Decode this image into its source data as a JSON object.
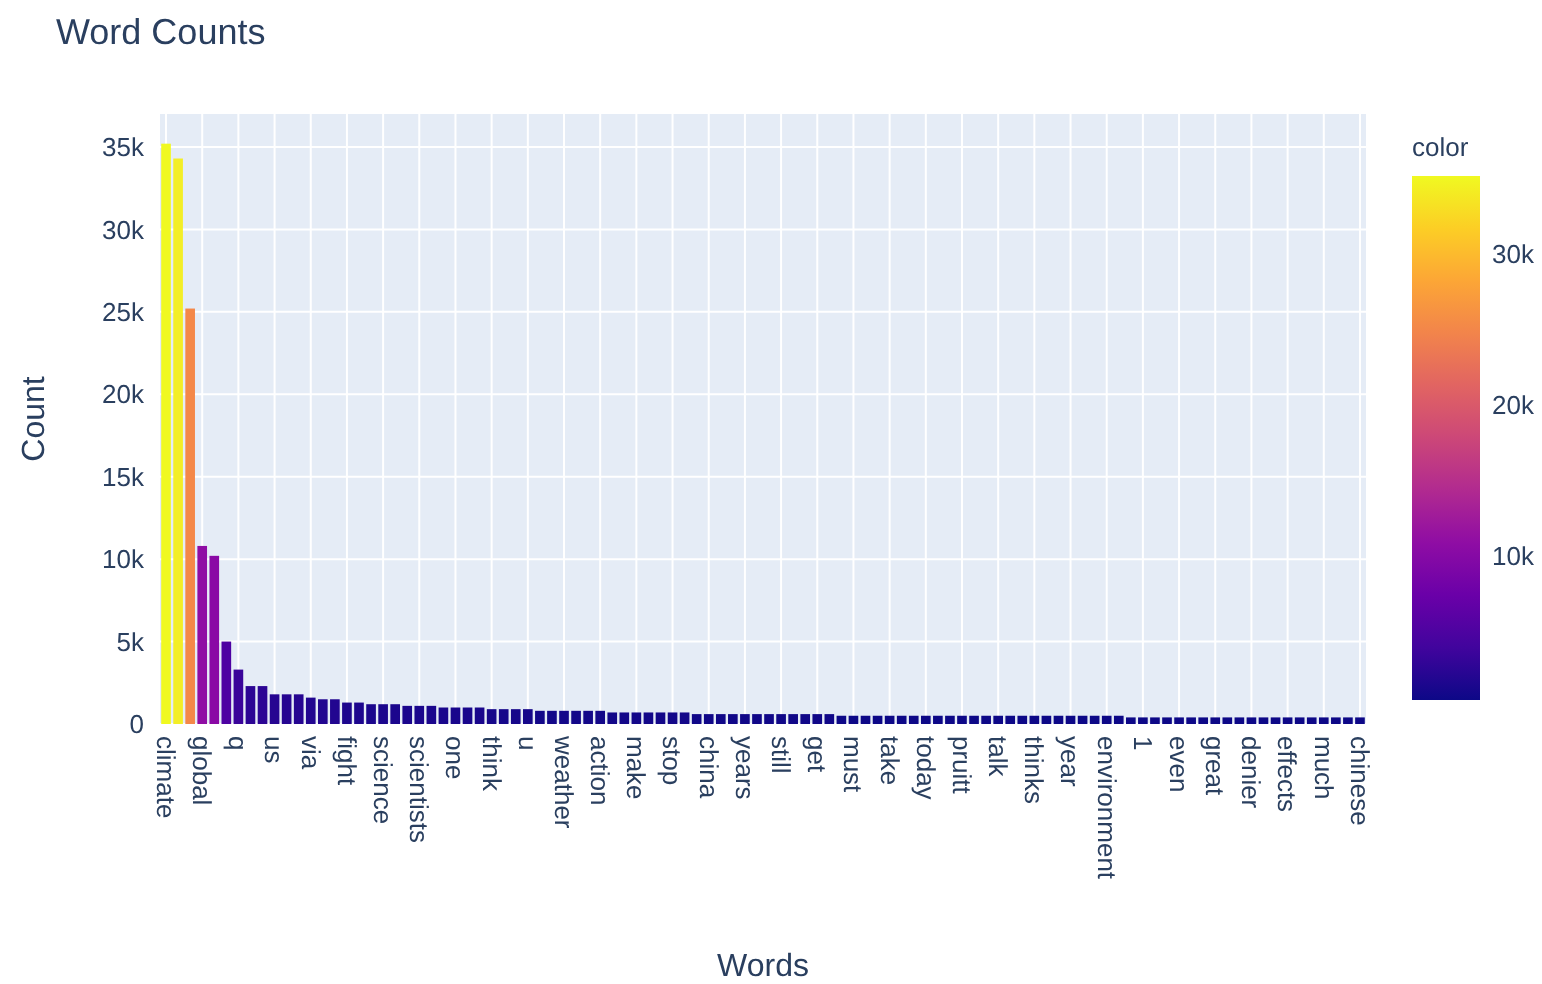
{
  "chart_data": {
    "type": "bar",
    "title": "Word Counts",
    "xlabel": "Words",
    "ylabel": "Count",
    "clabel": "color",
    "categories": [
      "climate",
      null,
      null,
      "global",
      null,
      null,
      "q",
      null,
      null,
      "us",
      null,
      null,
      "via",
      null,
      null,
      "fight",
      null,
      null,
      "science",
      null,
      null,
      "scientists",
      null,
      null,
      "one",
      null,
      null,
      "think",
      null,
      null,
      "u",
      null,
      null,
      "weather",
      null,
      null,
      "action",
      null,
      null,
      "make",
      null,
      null,
      "stop",
      null,
      null,
      "china",
      null,
      null,
      "years",
      null,
      null,
      "still",
      null,
      null,
      "get",
      null,
      null,
      "must",
      null,
      null,
      "take",
      null,
      null,
      "today",
      null,
      null,
      "pruitt",
      null,
      null,
      "talk",
      null,
      null,
      "thinks",
      null,
      null,
      "year",
      null,
      null,
      "environment",
      null,
      null,
      "1",
      null,
      null,
      "even",
      null,
      null,
      "great",
      null,
      null,
      "denier",
      null,
      null,
      "effects",
      null,
      null,
      "much",
      null,
      null,
      "chinese"
    ],
    "values": [
      35200,
      34300,
      25200,
      10800,
      10200,
      5000,
      3300,
      2300,
      2300,
      1800,
      1800,
      1800,
      1600,
      1500,
      1500,
      1300,
      1300,
      1200,
      1200,
      1200,
      1100,
      1100,
      1100,
      1000,
      1000,
      1000,
      1000,
      900,
      900,
      900,
      900,
      800,
      800,
      800,
      800,
      800,
      800,
      700,
      700,
      700,
      700,
      700,
      700,
      700,
      600,
      600,
      600,
      600,
      600,
      600,
      600,
      600,
      600,
      600,
      600,
      600,
      500,
      500,
      500,
      500,
      500,
      500,
      500,
      500,
      500,
      500,
      500,
      500,
      500,
      500,
      500,
      500,
      500,
      500,
      500,
      500,
      500,
      500,
      500,
      500,
      400,
      400,
      400,
      400,
      400,
      400,
      400,
      400,
      400,
      400,
      400,
      400,
      400,
      400,
      400,
      400,
      400,
      400,
      400,
      400
    ],
    "ylim": [
      0,
      37000
    ],
    "yticks": [
      0,
      {
        "value": 5000,
        "label": "5k"
      },
      {
        "value": 10000,
        "label": "10k"
      },
      {
        "value": 15000,
        "label": "15k"
      },
      {
        "value": 20000,
        "label": "20k"
      },
      {
        "value": 25000,
        "label": "25k"
      },
      {
        "value": 30000,
        "label": "30k"
      },
      {
        "value": 35000,
        "label": "35k"
      }
    ],
    "clim": [
      400,
      35200
    ],
    "cticks": [
      {
        "value": 10000,
        "label": "10k"
      },
      {
        "value": 20000,
        "label": "20k"
      },
      {
        "value": 30000,
        "label": "30k"
      }
    ],
    "grid": true
  }
}
